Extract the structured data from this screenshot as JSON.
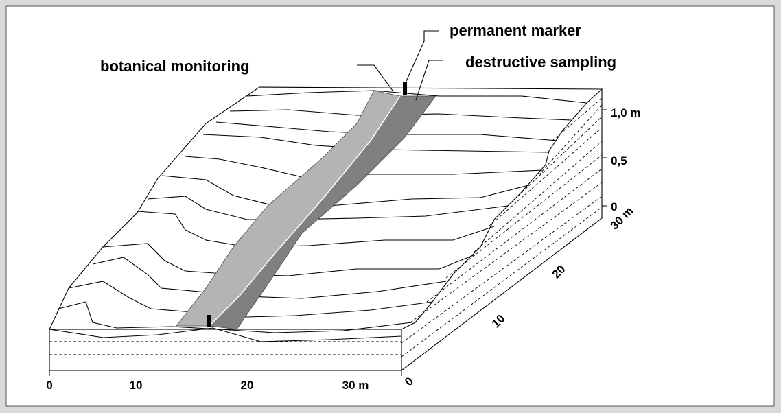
{
  "labels": {
    "permanent_marker": "permanent marker",
    "destructive_sampling": "destructive sampling",
    "botanical_monitoring": "botanical monitoring"
  },
  "x_axis": {
    "ticks": [
      "0",
      "10",
      "20",
      "30 m"
    ]
  },
  "depth_axis": {
    "ticks": [
      "0",
      "10",
      "20",
      "30 m"
    ]
  },
  "height_axis": {
    "ticks": [
      "0",
      "0,5",
      "1,0 m"
    ]
  }
}
